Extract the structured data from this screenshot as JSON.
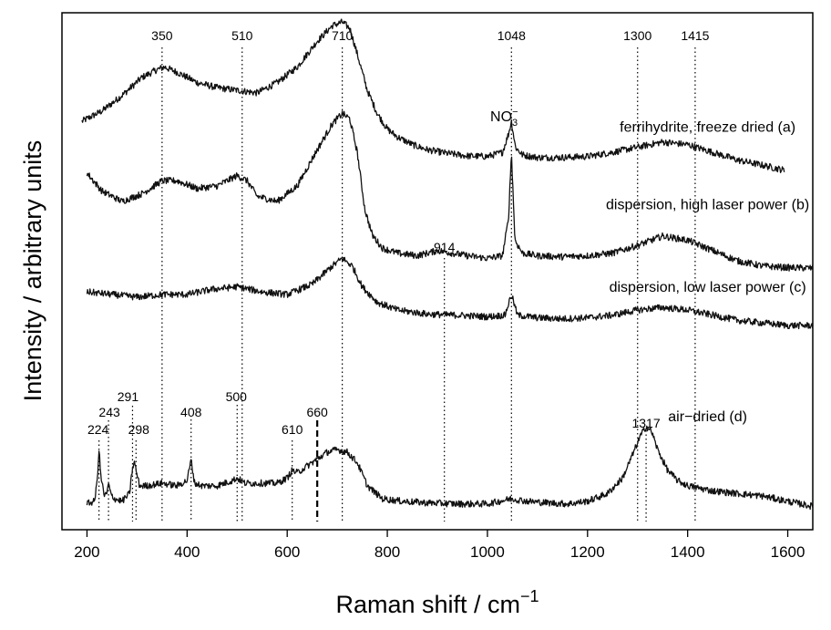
{
  "chart_data": {
    "type": "line",
    "xlabel": "Raman shift / cm",
    "xlabel_superscript": "−1",
    "ylabel": "Intensity / arbitrary units",
    "xlim": [
      150,
      1650
    ],
    "ylim": [
      0,
      100
    ],
    "x_ticks": [
      200,
      400,
      600,
      800,
      1000,
      1200,
      1400,
      1600
    ],
    "y_ticks_shown": false,
    "grid": false,
    "legend": "none",
    "reference_lines": [
      {
        "x": 224,
        "label": "224",
        "style": "dotted"
      },
      {
        "x": 243,
        "label": "243",
        "style": "dotted"
      },
      {
        "x": 291,
        "label": "291",
        "style": "dotted"
      },
      {
        "x": 298,
        "label": "298",
        "style": "dotted"
      },
      {
        "x": 350,
        "label": "350",
        "style": "dotted"
      },
      {
        "x": 408,
        "label": "408",
        "style": "dotted"
      },
      {
        "x": 500,
        "label": "500",
        "style": "dotted"
      },
      {
        "x": 510,
        "label": "510",
        "style": "dotted"
      },
      {
        "x": 610,
        "label": "610",
        "style": "dotted"
      },
      {
        "x": 660,
        "label": "660",
        "style": "dashed"
      },
      {
        "x": 710,
        "label": "710",
        "style": "dotted"
      },
      {
        "x": 914,
        "label": "914",
        "style": "dotted"
      },
      {
        "x": 1048,
        "label": "1048",
        "style": "dotted"
      },
      {
        "x": 1300,
        "label": "1300",
        "style": "dotted"
      },
      {
        "x": 1317,
        "label": "1317",
        "style": "dotted"
      },
      {
        "x": 1415,
        "label": "1415",
        "style": "dotted"
      }
    ],
    "annotation": {
      "main": "NO",
      "sub": "3",
      "sup": "−",
      "x": 1048,
      "y": 79
    },
    "series": [
      {
        "name": "ferrihydrite, freeze dried (a)",
        "label_x": 1440,
        "label_y": 77,
        "x": [
          190,
          230,
          270,
          310,
          340,
          355,
          380,
          420,
          460,
          500,
          540,
          580,
          620,
          660,
          690,
          710,
          725,
          740,
          760,
          780,
          800,
          820,
          850,
          880,
          920,
          960,
          1000,
          1030,
          1042,
          1048,
          1056,
          1070,
          1100,
          1150,
          1200,
          1250,
          1300,
          1350,
          1400,
          1450,
          1500,
          1550,
          1595
        ],
        "values": [
          79,
          81,
          84,
          87.5,
          89,
          89.5,
          88.5,
          86.5,
          85.5,
          85,
          84.5,
          86.5,
          89.5,
          94.5,
          97.5,
          98.2,
          97,
          92,
          85,
          80.5,
          77.5,
          76,
          74.5,
          73.5,
          72.8,
          72.3,
          72.2,
          73,
          76.5,
          79,
          74,
          72.5,
          72,
          72,
          72.2,
          73,
          74,
          75,
          74.5,
          73,
          71.5,
          70.5,
          69.5
        ]
      },
      {
        "name": "dispersion, high laser power (b)",
        "label_x": 1440,
        "label_y": 62,
        "x": [
          200,
          230,
          270,
          310,
          350,
          380,
          420,
          460,
          500,
          520,
          540,
          580,
          620,
          660,
          690,
          710,
          725,
          740,
          755,
          770,
          790,
          820,
          860,
          900,
          930,
          960,
          1000,
          1030,
          1042,
          1048,
          1055,
          1070,
          1100,
          1150,
          1200,
          1250,
          1300,
          1350,
          1400,
          1450,
          1500,
          1550,
          1600,
          1650
        ],
        "values": [
          69,
          65.5,
          63.5,
          65,
          67.5,
          67.5,
          66,
          66.5,
          68.5,
          67.5,
          64.5,
          63.5,
          66.5,
          73.5,
          78.5,
          80.5,
          79.5,
          73,
          62,
          57,
          54.5,
          53.5,
          53,
          54,
          53.5,
          53,
          52.5,
          53,
          60,
          73,
          56,
          53.5,
          53,
          52.8,
          53,
          53.5,
          55,
          56.8,
          56,
          54,
          52,
          51,
          50.7,
          50.6
        ]
      },
      {
        "name": "dispersion, low laser power (c)",
        "label_x": 1440,
        "label_y": 46,
        "x": [
          200,
          250,
          300,
          350,
          400,
          450,
          500,
          550,
          600,
          650,
          690,
          710,
          730,
          750,
          780,
          820,
          880,
          940,
          1000,
          1035,
          1048,
          1060,
          1100,
          1150,
          1200,
          1250,
          1300,
          1350,
          1400,
          1450,
          1500,
          1550,
          1600,
          1650
        ],
        "values": [
          46,
          45.5,
          45,
          45.5,
          45.5,
          46.5,
          47,
          46,
          45.5,
          47.5,
          51,
          52.5,
          51,
          47,
          44,
          42.5,
          41.7,
          41.5,
          41.2,
          41.5,
          45.5,
          41.5,
          41,
          40.8,
          41,
          41.5,
          42.5,
          43,
          42.5,
          41.5,
          40.5,
          40,
          39.5,
          39.5
        ]
      },
      {
        "name": "air−dried (d)",
        "label_x": 1440,
        "label_y": 21,
        "x": [
          200,
          215,
          220,
          224,
          228,
          235,
          240,
          243,
          247,
          255,
          270,
          285,
          291,
          295,
          298,
          305,
          320,
          350,
          380,
          400,
          408,
          415,
          430,
          460,
          490,
          500,
          515,
          550,
          580,
          600,
          610,
          620,
          650,
          680,
          700,
          720,
          740,
          760,
          790,
          830,
          880,
          940,
          1000,
          1048,
          1080,
          1120,
          1160,
          1200,
          1240,
          1270,
          1290,
          1305,
          1317,
          1328,
          1340,
          1360,
          1380,
          1400,
          1450,
          1500,
          1550,
          1600,
          1650
        ],
        "values": [
          5,
          5.5,
          9,
          15.5,
          10,
          6.5,
          7,
          9,
          7,
          6,
          5.5,
          7,
          12,
          13,
          11.5,
          8.5,
          8.5,
          9,
          8.5,
          9.5,
          13.5,
          9,
          8.5,
          8.5,
          9.5,
          10,
          9,
          9,
          9,
          10,
          11.5,
          11,
          13,
          15,
          15.5,
          15,
          13,
          8.5,
          6,
          5.5,
          5.2,
          5,
          5,
          6,
          5.5,
          5.2,
          5,
          5.5,
          7,
          10,
          14.5,
          18,
          20,
          19,
          15.5,
          11.5,
          9.5,
          8.5,
          7.5,
          7,
          6.5,
          5.5,
          4.5
        ]
      }
    ]
  }
}
